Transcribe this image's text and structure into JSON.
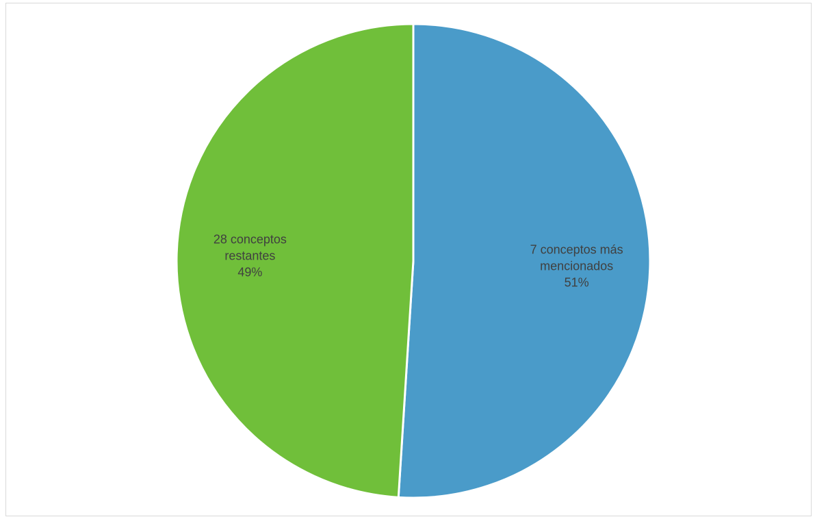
{
  "chart_data": {
    "type": "pie",
    "title": "",
    "slices": [
      {
        "label_lines": [
          "7 conceptos más",
          "mencionados"
        ],
        "percent_label": "51%",
        "value": 51,
        "color": "#4a9bc9"
      },
      {
        "label_lines": [
          "28 conceptos",
          "restantes"
        ],
        "percent_label": "49%",
        "value": 49,
        "color": "#70bf3a"
      }
    ],
    "legend": "none",
    "data_labels": "inside"
  }
}
